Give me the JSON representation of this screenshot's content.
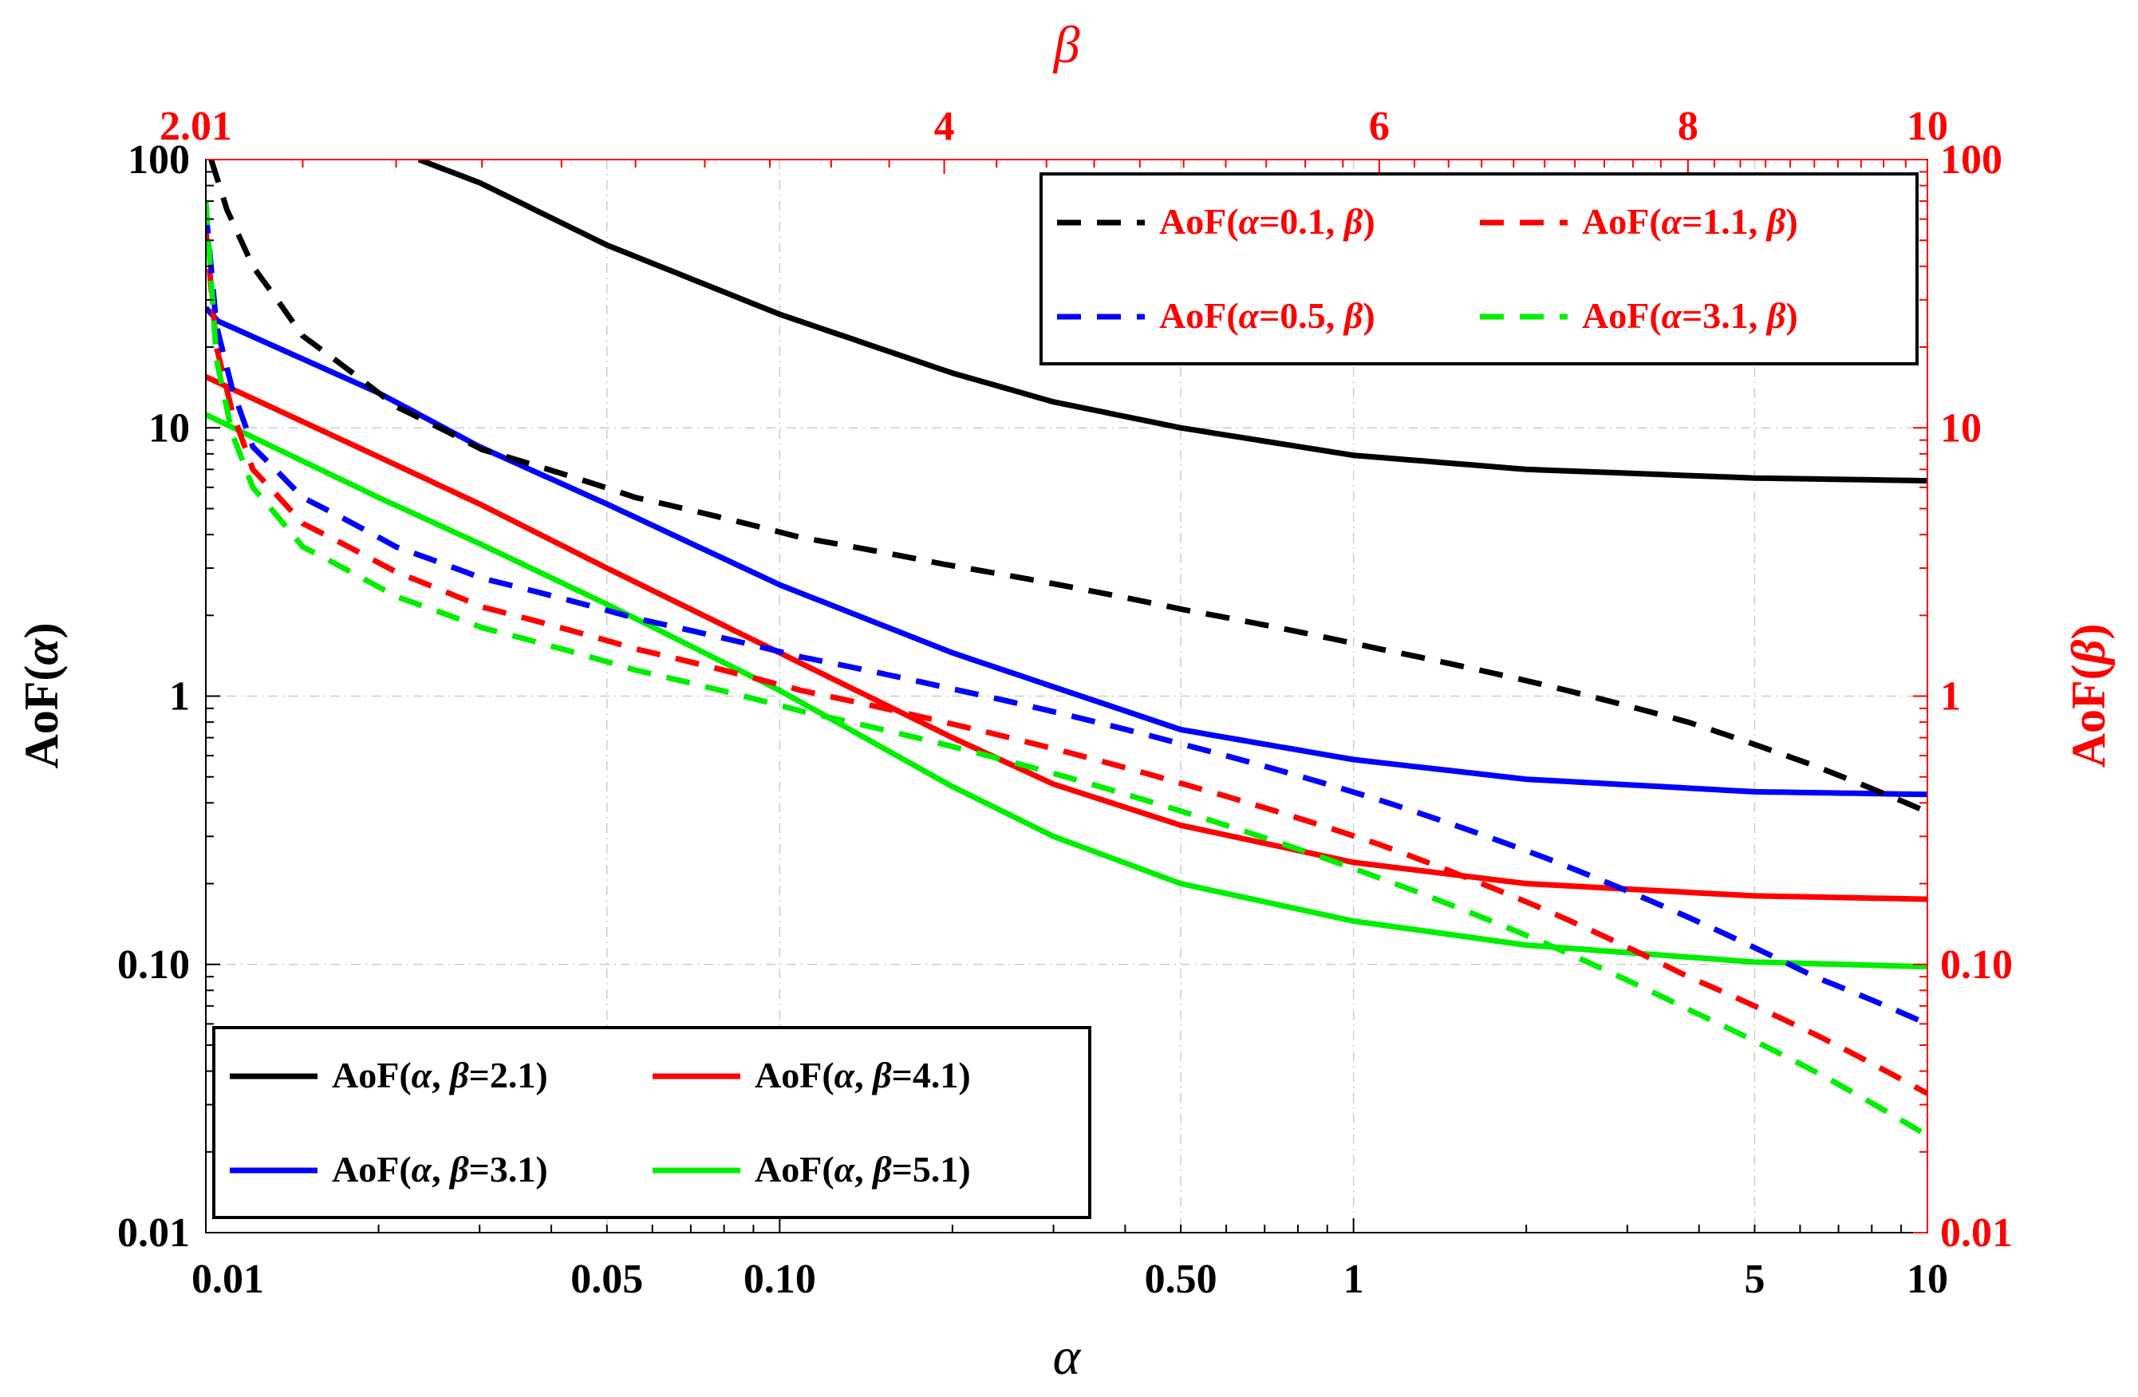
{
  "chart_data": {
    "type": "line",
    "scale": "log-log",
    "grid": true,
    "bottom_axis": {
      "label": "α",
      "range": [
        0.01,
        10
      ],
      "ticks": [
        {
          "value": 0.01,
          "label": "0.01"
        },
        {
          "value": 0.05,
          "label": "0.05"
        },
        {
          "value": 0.1,
          "label": "0.10"
        },
        {
          "value": 0.5,
          "label": "0.50"
        },
        {
          "value": 1,
          "label": "1"
        },
        {
          "value": 5,
          "label": "5"
        },
        {
          "value": 10,
          "label": "10"
        }
      ]
    },
    "top_axis": {
      "label": "β",
      "range": [
        2.01,
        10
      ],
      "ticks": [
        {
          "value": 2.01,
          "label": "2.01"
        },
        {
          "value": 4,
          "label": "4"
        },
        {
          "value": 6,
          "label": "6"
        },
        {
          "value": 8,
          "label": "8"
        },
        {
          "value": 10,
          "label": "10"
        }
      ]
    },
    "left_axis": {
      "label": "AoF(α)",
      "range": [
        0.01,
        100
      ],
      "ticks": [
        {
          "value": 0.01,
          "label": "0.01"
        },
        {
          "value": 0.1,
          "label": "0.10"
        },
        {
          "value": 1,
          "label": "1"
        },
        {
          "value": 10,
          "label": "10"
        },
        {
          "value": 100,
          "label": "100"
        }
      ]
    },
    "right_axis": {
      "label": "AoF(β)",
      "range": [
        0.01,
        100
      ],
      "ticks": [
        {
          "value": 0.01,
          "label": "0.01"
        },
        {
          "value": 0.1,
          "label": "0.10"
        },
        {
          "value": 1,
          "label": "1"
        },
        {
          "value": 10,
          "label": "10"
        },
        {
          "value": 100,
          "label": "100"
        }
      ]
    },
    "series": [
      {
        "name": "AoF(α, β=2.1)",
        "label_pre": "AoF(",
        "label_mid": ", ",
        "label_post": "=2.1)",
        "axis": "alpha",
        "color": "#000000",
        "dash": false,
        "x": [
          0.0235,
          0.03,
          0.05,
          0.1,
          0.2,
          0.3,
          0.5,
          1,
          2,
          5,
          10
        ],
        "y": [
          100,
          82,
          48,
          26.5,
          16,
          12.5,
          10,
          7.9,
          7.0,
          6.5,
          6.35
        ]
      },
      {
        "name": "AoF(α, β=3.1)",
        "label_pre": "AoF(",
        "label_mid": ", ",
        "label_post": "=3.1)",
        "axis": "alpha",
        "color": "#0000ff",
        "dash": false,
        "x": [
          0.01,
          0.0105,
          0.02,
          0.03,
          0.05,
          0.1,
          0.2,
          0.5,
          1,
          2,
          5,
          10
        ],
        "y": [
          28,
          25,
          13.5,
          8.5,
          5.2,
          2.6,
          1.45,
          0.75,
          0.58,
          0.49,
          0.44,
          0.43
        ]
      },
      {
        "name": "AoF(α, β=4.1)",
        "label_pre": "AoF(",
        "label_mid": ", ",
        "label_post": "=4.1)",
        "axis": "alpha",
        "color": "#ff0000",
        "dash": false,
        "x": [
          0.01,
          0.02,
          0.03,
          0.05,
          0.1,
          0.2,
          0.3,
          0.5,
          1,
          2,
          5,
          10
        ],
        "y": [
          15.5,
          7.8,
          5.2,
          3.0,
          1.45,
          0.7,
          0.47,
          0.33,
          0.24,
          0.2,
          0.18,
          0.175
        ]
      },
      {
        "name": "AoF(α, β=5.1)",
        "label_pre": "AoF(",
        "label_mid": ", ",
        "label_post": "=5.1)",
        "axis": "alpha",
        "color": "#00ee00",
        "dash": false,
        "x": [
          0.01,
          0.02,
          0.03,
          0.05,
          0.1,
          0.2,
          0.3,
          0.5,
          1,
          2,
          5,
          10
        ],
        "y": [
          11.2,
          5.5,
          3.7,
          2.2,
          1.05,
          0.46,
          0.3,
          0.2,
          0.145,
          0.118,
          0.102,
          0.098
        ]
      },
      {
        "name": "AoF(α=0.1, β)",
        "label_pre": "AoF(",
        "label_mid": "=0.1, ",
        "label_post": ")",
        "axis": "beta",
        "color": "#000000",
        "dash": true,
        "x": [
          2.02,
          2.05,
          2.1,
          2.2,
          2.4,
          2.6,
          3.0,
          3.5,
          4.0,
          5.0,
          6.0,
          7.0,
          8.0,
          9.0,
          10.0
        ],
        "y": [
          100,
          65,
          40,
          22,
          12,
          8.3,
          5.5,
          3.9,
          3.1,
          2.1,
          1.5,
          1.1,
          0.8,
          0.55,
          0.37
        ]
      },
      {
        "name": "AoF(α=1.1, β)",
        "label_pre": "AoF(",
        "label_mid": "=1.1, ",
        "label_post": ")",
        "axis": "beta",
        "color": "#ff0000",
        "dash": true,
        "x": [
          2.01,
          2.03,
          2.06,
          2.1,
          2.2,
          2.4,
          2.6,
          3.0,
          3.5,
          4.0,
          5.0,
          6.0,
          7.0,
          8.0,
          9.0,
          10.0
        ],
        "y": [
          55,
          20,
          11.5,
          7.0,
          4.4,
          2.9,
          2.15,
          1.5,
          1.05,
          0.8,
          0.47,
          0.28,
          0.16,
          0.09,
          0.055,
          0.033
        ]
      },
      {
        "name": "AoF(α=0.5, β)",
        "label_pre": "AoF(",
        "label_mid": "=0.5, ",
        "label_post": ")",
        "axis": "beta",
        "color": "#0000ff",
        "dash": true,
        "x": [
          2.01,
          2.03,
          2.06,
          2.1,
          2.2,
          2.4,
          2.6,
          3.0,
          3.5,
          4.0,
          5.0,
          6.0,
          7.0,
          8.0,
          9.0,
          10.0
        ],
        "y": [
          65,
          24,
          14,
          8.5,
          5.5,
          3.6,
          2.75,
          1.95,
          1.4,
          1.08,
          0.66,
          0.41,
          0.25,
          0.15,
          0.09,
          0.06
        ]
      },
      {
        "name": "AoF(α=3.1, β)",
        "label_pre": "AoF(",
        "label_mid": "=3.1, ",
        "label_post": ")",
        "axis": "beta",
        "color": "#00ee00",
        "dash": true,
        "x": [
          2.01,
          2.03,
          2.06,
          2.1,
          2.2,
          2.4,
          2.6,
          3.0,
          3.5,
          4.0,
          5.0,
          6.0,
          7.0,
          8.0,
          9.0,
          10.0
        ],
        "y": [
          70,
          18,
          9.5,
          6.0,
          3.6,
          2.35,
          1.8,
          1.25,
          0.88,
          0.66,
          0.37,
          0.21,
          0.12,
          0.068,
          0.04,
          0.023
        ]
      }
    ],
    "legends": [
      {
        "position": "top-right",
        "entries": [
          "AoF(α=0.1, β)",
          "AoF(α=1.1, β)",
          "AoF(α=0.5, β)",
          "AoF(α=3.1, β)"
        ]
      },
      {
        "position": "bottom-left",
        "entries": [
          "AoF(α, β=2.1)",
          "AoF(α, β=4.1)",
          "AoF(α, β=3.1)",
          "AoF(α, β=5.1)"
        ]
      }
    ]
  }
}
